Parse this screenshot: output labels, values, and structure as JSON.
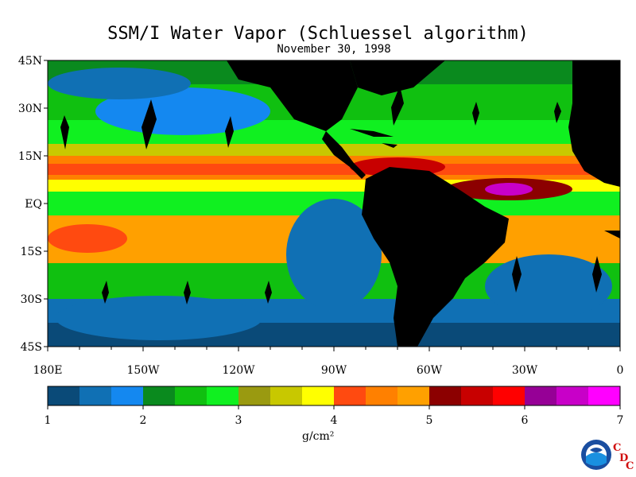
{
  "title": "SSM/I Water Vapor (Schluessel algorithm)",
  "subtitle": "November 30, 1998",
  "lat_labels": [
    "45N",
    "30N",
    "15N",
    "EQ",
    "15S",
    "30S",
    "45S"
  ],
  "lon_labels": [
    "180E",
    "150W",
    "120W",
    "90W",
    "60W",
    "30W",
    "0"
  ],
  "colorbar": {
    "colors": [
      "#0a4a78",
      "#1070b4",
      "#1488f0",
      "#0a8a1e",
      "#10c010",
      "#10f020",
      "#9a9a10",
      "#c8c800",
      "#ffff00",
      "#ff4a10",
      "#ff8000",
      "#ffa000",
      "#8c0000",
      "#c80000",
      "#ff0000",
      "#960096",
      "#c800c8",
      "#ff00ff"
    ],
    "tick_labels": [
      "1",
      "2",
      "3",
      "4",
      "5",
      "6",
      "7"
    ],
    "unit": "g/cm²"
  },
  "logo": {
    "name": "NOAA",
    "cdc_letters": [
      "C",
      "D",
      "C"
    ]
  }
}
